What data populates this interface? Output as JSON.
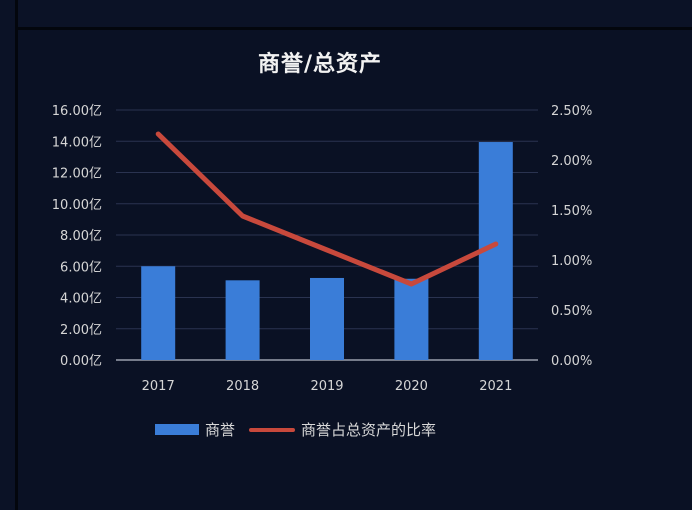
{
  "chart_data": {
    "type": "bar",
    "title": "商誉/总资产",
    "categories": [
      "2017",
      "2018",
      "2019",
      "2020",
      "2021"
    ],
    "series": [
      {
        "name": "商誉",
        "type": "bar",
        "axis": "left",
        "unit": "亿",
        "color": "#3a7dd8",
        "values": [
          6.0,
          5.1,
          5.25,
          5.2,
          13.95
        ]
      },
      {
        "name": "商誉占总资产的比率",
        "type": "line",
        "axis": "right",
        "unit": "%",
        "color": "#c8493c",
        "values": [
          2.26,
          1.44,
          1.1,
          0.76,
          1.16
        ]
      }
    ],
    "y_left": {
      "ticks": [
        "0.00亿",
        "2.00亿",
        "4.00亿",
        "6.00亿",
        "8.00亿",
        "10.00亿",
        "12.00亿",
        "14.00亿",
        "16.00亿"
      ],
      "ylim": [
        0,
        16
      ]
    },
    "y_right": {
      "ticks": [
        "0.00%",
        "0.50%",
        "1.00%",
        "1.50%",
        "2.00%",
        "2.50%"
      ],
      "ylim": [
        0,
        2.5
      ]
    },
    "xlabel": "",
    "ylabel": "",
    "grid": true,
    "legend_position": "bottom"
  },
  "legend": {
    "bar_label": "商誉",
    "line_label": "商誉占总资产的比率"
  }
}
